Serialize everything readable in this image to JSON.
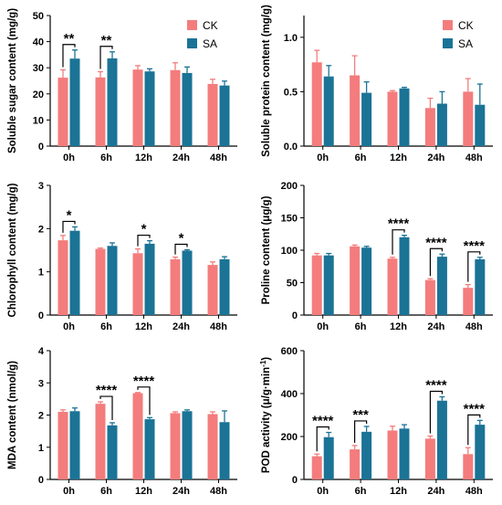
{
  "colors": {
    "CK": "#F47C7C",
    "SA": "#1B7396",
    "axis": "#000000"
  },
  "chart_data": [
    {
      "type": "bar",
      "ylabel": "Soluble sugar content (mg/g)",
      "categories": [
        "0h",
        "6h",
        "12h",
        "24h",
        "48h"
      ],
      "ylim": [
        0,
        50
      ],
      "yticks": [
        "0",
        "10",
        "20",
        "30",
        "40",
        "50"
      ],
      "legend": "top-right",
      "series": [
        {
          "name": "CK",
          "values": [
            26.2,
            26.3,
            29.3,
            29.1,
            23.8
          ],
          "errors": [
            3.0,
            2.2,
            1.5,
            2.8,
            1.8
          ]
        },
        {
          "name": "SA",
          "values": [
            33.5,
            33.6,
            28.6,
            28.0,
            23.2
          ],
          "errors": [
            3.3,
            2.5,
            1.0,
            2.3,
            1.7
          ]
        }
      ],
      "significance": [
        {
          "category": 0,
          "label": "**"
        },
        {
          "category": 1,
          "label": "**"
        }
      ]
    },
    {
      "type": "bar",
      "ylabel": "Soluble protein content (mg/g)",
      "categories": [
        "0h",
        "6h",
        "12h",
        "24h",
        "48h"
      ],
      "ylim": [
        0,
        1.2
      ],
      "yticks": [
        "0.0",
        "0.5",
        "1.0"
      ],
      "legend": "top-right",
      "series": [
        {
          "name": "CK",
          "values": [
            0.77,
            0.65,
            0.5,
            0.35,
            0.5
          ],
          "errors": [
            0.11,
            0.18,
            0.01,
            0.09,
            0.12
          ]
        },
        {
          "name": "SA",
          "values": [
            0.64,
            0.49,
            0.53,
            0.39,
            0.38
          ],
          "errors": [
            0.1,
            0.1,
            0.01,
            0.11,
            0.19
          ]
        }
      ],
      "significance": []
    },
    {
      "type": "bar",
      "ylabel": "Chlorophyll content (mg/g)",
      "categories": [
        "0h",
        "6h",
        "12h",
        "24h",
        "48h"
      ],
      "ylim": [
        0,
        3
      ],
      "yticks": [
        "0",
        "1",
        "2",
        "3"
      ],
      "series": [
        {
          "name": "CK",
          "values": [
            1.73,
            1.53,
            1.43,
            1.29,
            1.16
          ],
          "errors": [
            0.11,
            0.02,
            0.1,
            0.05,
            0.07
          ]
        },
        {
          "name": "SA",
          "values": [
            1.95,
            1.6,
            1.65,
            1.49,
            1.29
          ],
          "errors": [
            0.09,
            0.07,
            0.07,
            0.02,
            0.06
          ]
        }
      ],
      "significance": [
        {
          "category": 0,
          "label": "*"
        },
        {
          "category": 2,
          "label": "*"
        },
        {
          "category": 3,
          "label": "*"
        }
      ]
    },
    {
      "type": "bar",
      "ylabel": "Proline content (μg/g)",
      "categories": [
        "0h",
        "6h",
        "12h",
        "24h",
        "48h"
      ],
      "ylim": [
        0,
        200
      ],
      "yticks": [
        "0",
        "50",
        "100",
        "150",
        "200"
      ],
      "series": [
        {
          "name": "CK",
          "values": [
            92,
            106,
            87,
            54,
            42
          ],
          "errors": [
            3,
            2,
            2,
            2,
            5
          ]
        },
        {
          "name": "SA",
          "values": [
            92,
            104,
            120,
            90,
            86
          ],
          "errors": [
            3,
            2,
            3,
            4,
            3
          ]
        }
      ],
      "significance": [
        {
          "category": 2,
          "label": "****"
        },
        {
          "category": 3,
          "label": "****"
        },
        {
          "category": 4,
          "label": "****"
        }
      ]
    },
    {
      "type": "bar",
      "ylabel": "MDA content (nmol/g)",
      "categories": [
        "0h",
        "6h",
        "12h",
        "24h",
        "48h"
      ],
      "ylim": [
        0,
        4
      ],
      "yticks": [
        "0",
        "1",
        "2",
        "3",
        "4"
      ],
      "series": [
        {
          "name": "CK",
          "values": [
            2.1,
            2.35,
            2.68,
            2.06,
            2.03
          ],
          "errors": [
            0.06,
            0.06,
            0.02,
            0.04,
            0.07
          ]
        },
        {
          "name": "SA",
          "values": [
            2.12,
            1.68,
            1.87,
            2.12,
            1.78
          ],
          "errors": [
            0.1,
            0.08,
            0.05,
            0.04,
            0.35
          ]
        }
      ],
      "significance": [
        {
          "category": 1,
          "label": "****"
        },
        {
          "category": 2,
          "label": "****"
        }
      ]
    },
    {
      "type": "bar",
      "ylabel": "POD activity (μ/g·min",
      "ylabel_sup": "-1",
      "ylabel_end": ")",
      "categories": [
        "0h",
        "6h",
        "12h",
        "24h",
        "48h"
      ],
      "ylim": [
        0,
        600
      ],
      "yticks": [
        "0",
        "200",
        "400",
        "600"
      ],
      "series": [
        {
          "name": "CK",
          "values": [
            108,
            140,
            228,
            190,
            118
          ],
          "errors": [
            10,
            18,
            20,
            12,
            30
          ]
        },
        {
          "name": "SA",
          "values": [
            197,
            222,
            237,
            367,
            255
          ],
          "errors": [
            22,
            25,
            18,
            18,
            20
          ]
        }
      ],
      "significance": [
        {
          "category": 0,
          "label": "****"
        },
        {
          "category": 1,
          "label": "***"
        },
        {
          "category": 3,
          "label": "****"
        },
        {
          "category": 4,
          "label": "****"
        }
      ]
    }
  ]
}
